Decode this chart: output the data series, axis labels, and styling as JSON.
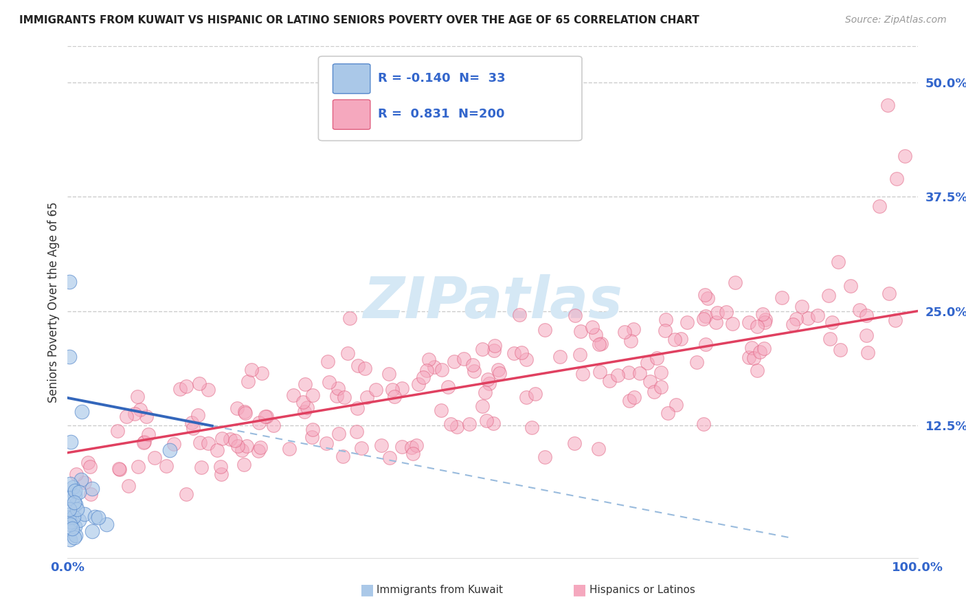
{
  "title": "IMMIGRANTS FROM KUWAIT VS HISPANIC OR LATINO SENIORS POVERTY OVER THE AGE OF 65 CORRELATION CHART",
  "source": "Source: ZipAtlas.com",
  "ylabel": "Seniors Poverty Over the Age of 65",
  "xlim": [
    0.0,
    1.0
  ],
  "ylim": [
    -0.02,
    0.54
  ],
  "yticks": [
    0.0,
    0.125,
    0.25,
    0.375,
    0.5
  ],
  "ytick_labels": [
    "",
    "12.5%",
    "25.0%",
    "37.5%",
    "50.0%"
  ],
  "xtick_labels": [
    "0.0%",
    "100.0%"
  ],
  "xticks": [
    0.0,
    1.0
  ],
  "R_blue": -0.14,
  "N_blue": 33,
  "R_pink": 0.831,
  "N_pink": 200,
  "blue_color": "#aac8e8",
  "pink_color": "#f5a8be",
  "blue_edge_color": "#5588cc",
  "pink_edge_color": "#e06080",
  "blue_line_color": "#3366bb",
  "pink_line_color": "#e04060",
  "blue_dashed_color": "#99bbdd",
  "watermark_color": "#d5e8f5",
  "legend_blue_label": "Immigrants from Kuwait",
  "legend_pink_label": "Hispanics or Latinos",
  "title_color": "#222222",
  "source_color": "#999999",
  "background_color": "#ffffff",
  "grid_color": "#cccccc",
  "tick_label_color": "#3366cc",
  "blue_line_intercept": 0.155,
  "blue_line_slope": -0.18,
  "pink_line_intercept": 0.095,
  "pink_line_slope": 0.155
}
